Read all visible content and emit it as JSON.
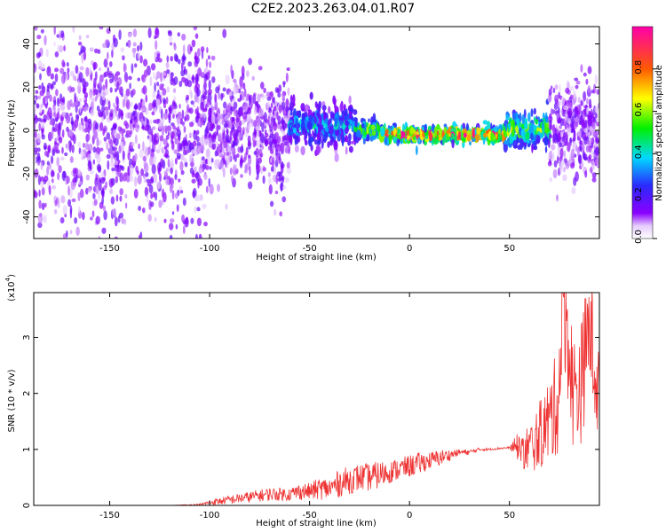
{
  "title": "C2E2.2023.263.04.01.R07",
  "chart_data": [
    {
      "type": "heatmap",
      "xlabel": "Height of straight line (km)",
      "ylabel": "Frequency (Hz)",
      "xlim": [
        -188,
        95
      ],
      "ylim": [
        -50,
        48
      ],
      "x_ticks": [
        -150,
        -100,
        -50,
        0,
        50
      ],
      "y_ticks": [
        -40,
        -20,
        0,
        20,
        40
      ],
      "colorbar": {
        "label": "Normalized spectral amplitude",
        "ticks": [
          "0.0",
          "0.2",
          "0.4",
          "0.6",
          "0.8"
        ],
        "range": [
          0,
          1
        ],
        "colormap": "rainbow (white-purple-blue-cyan-green-yellow-red-magenta)"
      },
      "grid": false,
      "bands": [
        {
          "x_start": -188,
          "x_end": -100,
          "center_hz": 0,
          "spread_hz": 48,
          "amplitude": 0.1
        },
        {
          "x_start": -100,
          "x_end": -60,
          "center_hz": 0,
          "spread_hz": 25,
          "amplitude": 0.12
        },
        {
          "x_start": -60,
          "x_end": -27,
          "center_hz": 2,
          "spread_hz": 10,
          "amplitude": 0.35
        },
        {
          "x_start": -27,
          "x_end": -15,
          "center_hz": 0,
          "spread_hz": 4,
          "amplitude": 0.6
        },
        {
          "x_start": -15,
          "x_end": 48,
          "center_hz": -2,
          "spread_hz": 3,
          "amplitude": 0.9
        },
        {
          "x_start": 48,
          "x_end": 70,
          "center_hz": 0,
          "spread_hz": 8,
          "amplitude": 0.55
        },
        {
          "x_start": 70,
          "x_end": 95,
          "center_hz": 0,
          "spread_hz": 20,
          "amplitude": 0.15
        }
      ]
    },
    {
      "type": "line",
      "xlabel": "Height of straight line (km)",
      "ylabel": "SNR (10 * v/v)",
      "scale_label": "(x10",
      "scale_exp": "4",
      "scale_close": ")",
      "xlim": [
        -188,
        95
      ],
      "ylim": [
        0,
        3.8
      ],
      "x_ticks": [
        -150,
        -100,
        -50,
        0,
        50
      ],
      "y_ticks": [
        0,
        1,
        2,
        3
      ],
      "color": "#ee3333",
      "x": [
        -188,
        -150,
        -120,
        -105,
        -100,
        -90,
        -80,
        -70,
        -60,
        -55,
        -50,
        -45,
        -40,
        -35,
        -30,
        -25,
        -20,
        -15,
        -10,
        -5,
        0,
        5,
        10,
        15,
        20,
        25,
        30,
        35,
        40,
        45,
        50,
        55,
        58,
        62,
        66,
        70,
        74,
        78,
        82,
        86,
        90,
        95
      ],
      "y": [
        0.0,
        0.0,
        0.0,
        0.01,
        0.05,
        0.1,
        0.15,
        0.2,
        0.2,
        0.25,
        0.25,
        0.3,
        0.3,
        0.4,
        0.45,
        0.5,
        0.5,
        0.55,
        0.6,
        0.65,
        0.7,
        0.75,
        0.8,
        0.85,
        0.9,
        0.95,
        0.95,
        1.0,
        1.0,
        1.02,
        1.03,
        1.05,
        1.0,
        1.0,
        1.1,
        1.2,
        1.5,
        3.8,
        1.6,
        1.8,
        3.5,
        1.5
      ],
      "spread": [
        0,
        0,
        0,
        0.02,
        0.05,
        0.08,
        0.1,
        0.12,
        0.12,
        0.15,
        0.15,
        0.2,
        0.2,
        0.25,
        0.25,
        0.25,
        0.25,
        0.25,
        0.2,
        0.2,
        0.2,
        0.2,
        0.15,
        0.15,
        0.1,
        0.05,
        0.05,
        0.03,
        0.02,
        0.02,
        0.02,
        0.3,
        0.5,
        0.6,
        0.8,
        1.0,
        1.2,
        1.4,
        1.3,
        1.4,
        1.4,
        1.2
      ]
    }
  ]
}
